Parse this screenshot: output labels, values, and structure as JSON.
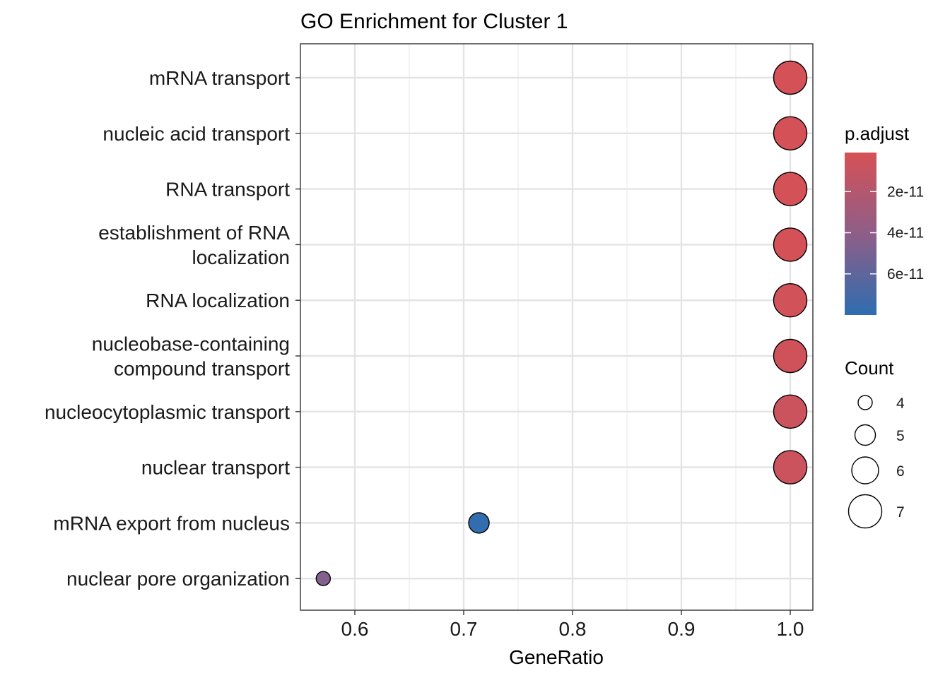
{
  "chart_data": {
    "type": "scatter",
    "title": "GO Enrichment for Cluster 1",
    "xlabel": "GeneRatio",
    "ylabel": "",
    "xlim": [
      0.55,
      1.02
    ],
    "x_ticks": [
      0.6,
      0.7,
      0.8,
      0.9,
      1.0
    ],
    "x_tick_labels": [
      "0.6",
      "0.7",
      "0.8",
      "0.9",
      "1.0"
    ],
    "grid": true,
    "categories": [
      "mRNA transport",
      "nucleic acid transport",
      "RNA transport",
      "establishment of RNA\nlocalization",
      "RNA localization",
      "nucleobase-containing\ncompound transport",
      "nucleocytoplasmic transport",
      "nuclear transport",
      "mRNA export from nucleus",
      "nuclear pore organization"
    ],
    "points": [
      {
        "term": "mRNA transport",
        "gene_ratio": 1.0,
        "count": 7,
        "p_adjust": 2e-12
      },
      {
        "term": "nucleic acid transport",
        "gene_ratio": 1.0,
        "count": 7,
        "p_adjust": 2e-12
      },
      {
        "term": "RNA transport",
        "gene_ratio": 1.0,
        "count": 7,
        "p_adjust": 2e-12
      },
      {
        "term": "establishment of RNA localization",
        "gene_ratio": 1.0,
        "count": 7,
        "p_adjust": 2e-12
      },
      {
        "term": "RNA localization",
        "gene_ratio": 1.0,
        "count": 7,
        "p_adjust": 3e-12
      },
      {
        "term": "nucleobase-containing compound transport",
        "gene_ratio": 1.0,
        "count": 7,
        "p_adjust": 5e-12
      },
      {
        "term": "nucleocytoplasmic transport",
        "gene_ratio": 1.0,
        "count": 7,
        "p_adjust": 7e-12
      },
      {
        "term": "nuclear transport",
        "gene_ratio": 1.0,
        "count": 7,
        "p_adjust": 7e-12
      },
      {
        "term": "mRNA export from nucleus",
        "gene_ratio": 0.714,
        "count": 5,
        "p_adjust": 7.9e-11
      },
      {
        "term": "nuclear pore organization",
        "gene_ratio": 0.571,
        "count": 4,
        "p_adjust": 4.5e-11
      }
    ],
    "legend_color": {
      "title": "p.adjust",
      "position": "right",
      "range": [
        1e-12,
        8e-11
      ],
      "low_color": "#D65156",
      "high_color": "#2F6DB0",
      "ticks": [
        2e-11,
        4e-11,
        6e-11
      ],
      "tick_labels": [
        "2e-11",
        "4e-11",
        "6e-11"
      ]
    },
    "legend_size": {
      "title": "Count",
      "position": "right",
      "values": [
        4,
        5,
        6,
        7
      ],
      "labels": [
        "4",
        "5",
        "6",
        "7"
      ]
    }
  }
}
